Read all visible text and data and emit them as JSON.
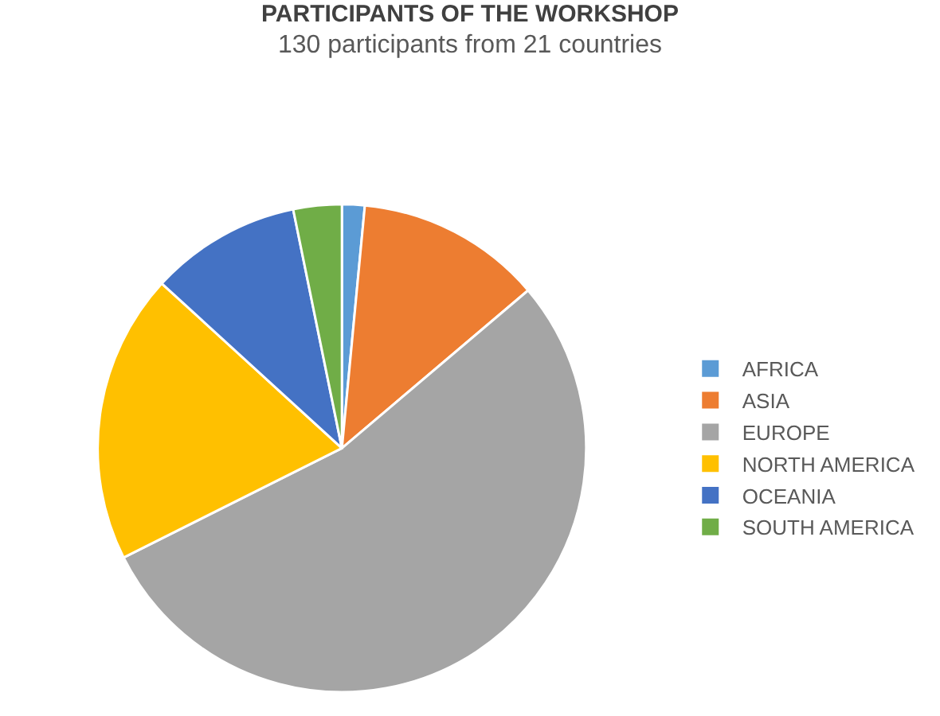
{
  "chart_data": {
    "type": "pie",
    "title": "PARTICIPANTS OF THE WORKSHOP",
    "subtitle": "130 participants from 21 countries",
    "categories": [
      "AFRICA",
      "ASIA",
      "EUROPE",
      "NORTH AMERICA",
      "OCEANIA",
      "SOUTH AMERICA"
    ],
    "values": [
      1.5,
      12.3,
      53.8,
      19.2,
      10,
      3.2
    ],
    "colors": [
      "#5b9bd5",
      "#ed7d31",
      "#a5a5a5",
      "#ffc000",
      "#4472c4",
      "#70ad47"
    ],
    "legend": "right"
  }
}
